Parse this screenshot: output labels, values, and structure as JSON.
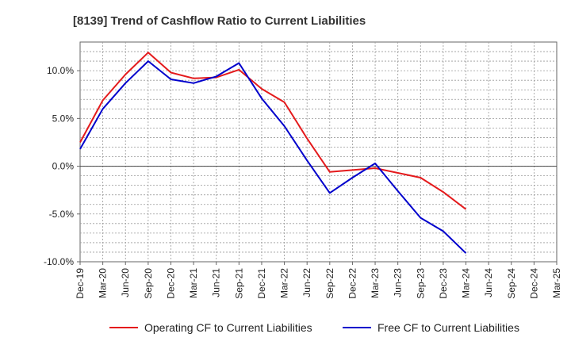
{
  "chart_data": {
    "type": "line",
    "title": "[8139]  Trend of Cashflow Ratio to Current Liabilities",
    "xlabel": "",
    "ylabel": "",
    "categories": [
      "Dec-19",
      "Mar-20",
      "Jun-20",
      "Sep-20",
      "Dec-20",
      "Mar-21",
      "Jun-21",
      "Sep-21",
      "Dec-21",
      "Mar-22",
      "Jun-22",
      "Sep-22",
      "Dec-22",
      "Mar-23",
      "Jun-23",
      "Sep-23",
      "Dec-23",
      "Mar-24",
      "Jun-24",
      "Sep-24",
      "Dec-24",
      "Mar-25"
    ],
    "ylim": [
      -10,
      13
    ],
    "yticks": [
      10,
      5,
      0,
      -5,
      -10
    ],
    "ytick_labels": [
      "10.0%",
      "5.0%",
      "0.0%",
      "-5.0%",
      "-10.0%"
    ],
    "grid": true,
    "legend_position": "bottom",
    "series": [
      {
        "name": "Operating CF to Current Liabilities",
        "color": "#e41a1c",
        "values": [
          2.5,
          6.9,
          9.6,
          11.9,
          9.8,
          9.2,
          9.3,
          10.1,
          8.1,
          6.7,
          2.9,
          -0.6,
          -0.4,
          -0.2,
          -0.7,
          -1.2,
          -2.7,
          -4.5,
          null,
          null,
          null,
          null
        ]
      },
      {
        "name": "Free CF to Current Liabilities",
        "color": "#0000cc",
        "values": [
          1.8,
          6.0,
          8.7,
          11.0,
          9.1,
          8.7,
          9.4,
          10.8,
          7.1,
          4.2,
          0.6,
          -2.8,
          -1.2,
          0.3,
          -2.6,
          -5.4,
          -6.8,
          -9.1,
          null,
          null,
          null,
          null
        ]
      }
    ]
  }
}
